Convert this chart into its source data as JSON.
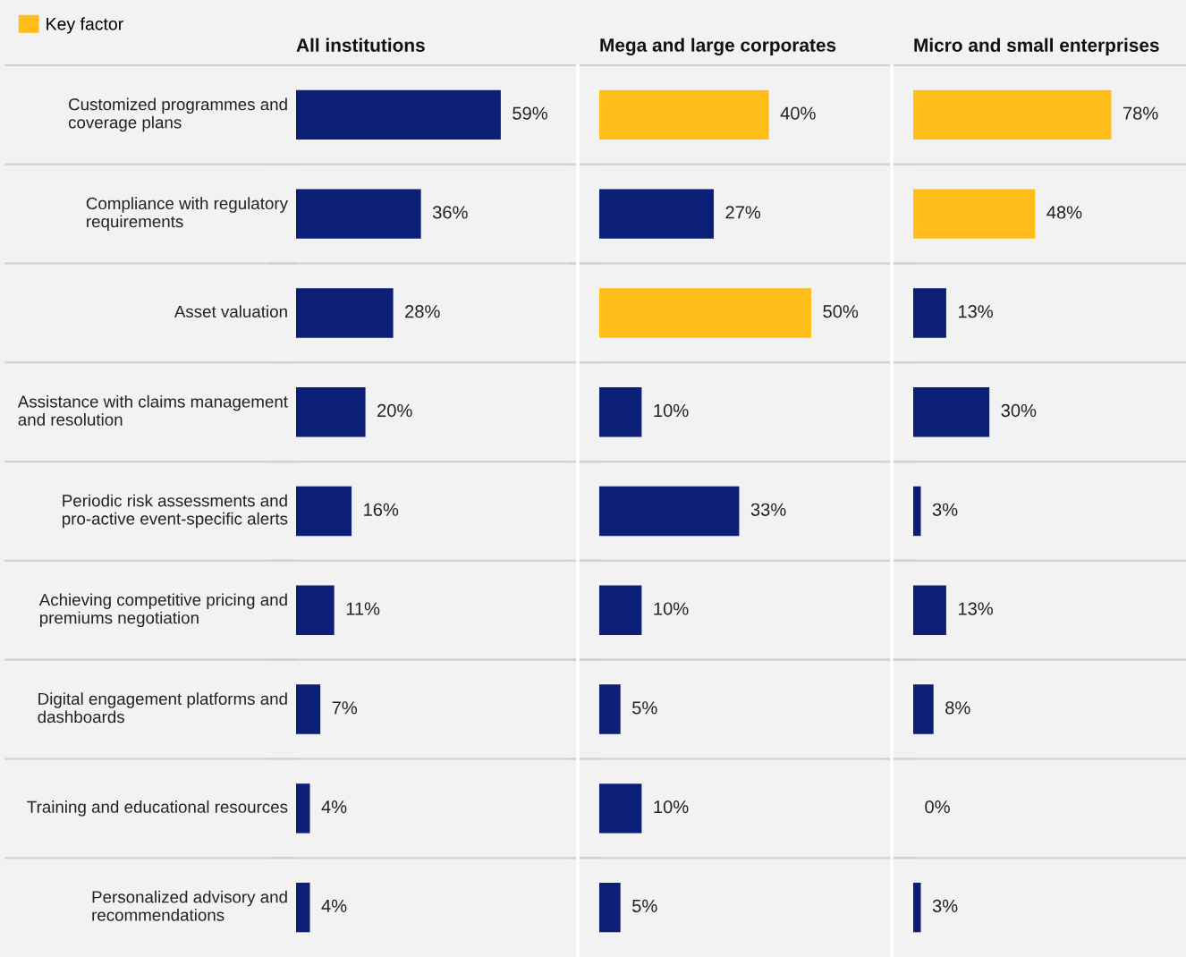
{
  "chart_data": [
    {
      "type": "bar",
      "orientation": "horizontal",
      "title": "All institutions",
      "categories": [
        "Customized programmes and coverage plans",
        "Compliance with regulatory requirements",
        "Asset valuation",
        "Assistance with claims management and resolution",
        "Periodic risk assessments and pro-active event-specific alerts",
        "Achieving competitive pricing and premiums negotiation",
        "Digital engagement platforms and dashboards",
        "Training and educational resources",
        "Personalized advisory and recommendations"
      ],
      "series": [
        {
          "name": "Key factor",
          "color": "#ffbe1a",
          "values": [
            null,
            null,
            null,
            null,
            null,
            null,
            null,
            null,
            null
          ],
          "value_labels": [
            null,
            null,
            null,
            null,
            null,
            null,
            null,
            null,
            null
          ]
        },
        {
          "color": "#0b1f77",
          "values": [
            59,
            36,
            28,
            20,
            16,
            11,
            7,
            4,
            4
          ],
          "value_labels": [
            "59%",
            "36%",
            "28%",
            "20%",
            "16%",
            "11%",
            "7%",
            "4%",
            "4%"
          ]
        }
      ],
      "data_labels": true,
      "grid": "y",
      "legend": "top left"
    },
    {
      "type": "bar",
      "orientation": "horizontal",
      "title": "Mega and large corporates",
      "series": [
        {
          "color": "#ffbe1a",
          "values": [
            40,
            null,
            50,
            null,
            null,
            null,
            null,
            null,
            null
          ],
          "value_labels": [
            "40%",
            null,
            "50%",
            null,
            null,
            null,
            null,
            null,
            null
          ]
        },
        {
          "color": "#0b1f77",
          "values": [
            null,
            27,
            null,
            10,
            33,
            10,
            5,
            10,
            5
          ],
          "value_labels": [
            null,
            "27%",
            null,
            "10%",
            "33%",
            "10%",
            "5%",
            "10%",
            "5%"
          ]
        }
      ],
      "data_labels": true,
      "grid": "y",
      "tick_labels": false
    },
    {
      "type": "bar",
      "orientation": "horizontal",
      "title": "Micro and small enterprises",
      "series": [
        {
          "color": "#ffbe1a",
          "values": [
            78,
            48,
            null,
            null,
            null,
            null,
            null,
            null,
            null
          ],
          "value_labels": [
            "78%",
            "48%",
            null,
            null,
            null,
            null,
            null,
            null,
            null
          ]
        },
        {
          "color": "#0b1f77",
          "values": [
            null,
            null,
            13,
            30,
            3,
            13,
            8,
            0,
            3
          ],
          "value_labels": [
            null,
            null,
            "13%",
            "30%",
            "3%",
            "13%",
            "8%",
            "0%",
            "3%"
          ]
        }
      ],
      "data_labels": true,
      "grid": "y",
      "tick_labels": false
    }
  ]
}
